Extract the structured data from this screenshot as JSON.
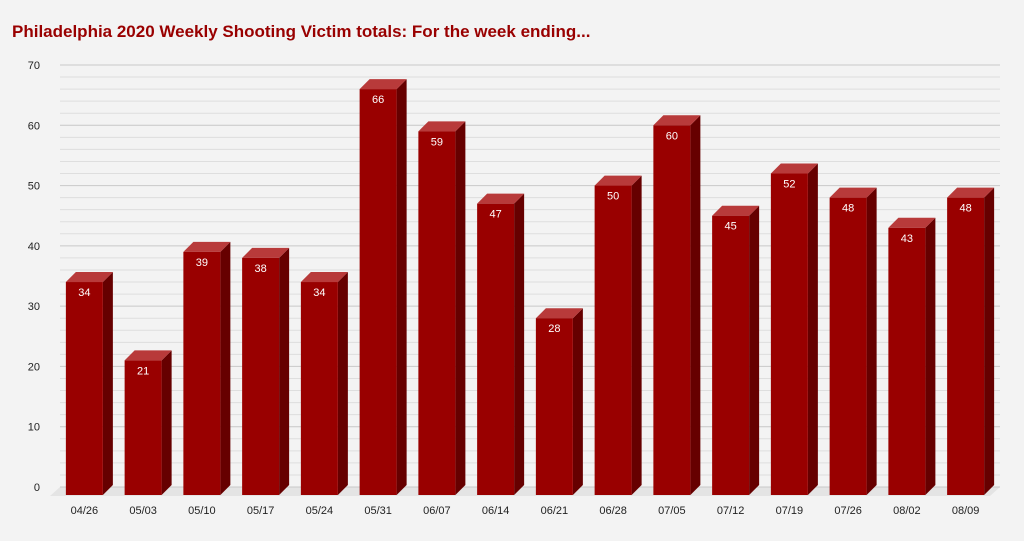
{
  "chart_data": {
    "type": "bar",
    "title": "Philadelphia 2020 Weekly Shooting Victim totals: For the week ending...",
    "xlabel": "",
    "ylabel": "",
    "categories": [
      "04/26",
      "05/03",
      "05/10",
      "05/17",
      "05/24",
      "05/31",
      "06/07",
      "06/14",
      "06/21",
      "06/28",
      "07/05",
      "07/12",
      "07/19",
      "07/26",
      "08/02",
      "08/09"
    ],
    "values": [
      34,
      21,
      39,
      38,
      34,
      66,
      59,
      47,
      28,
      50,
      60,
      45,
      52,
      48,
      43,
      48
    ],
    "ylim": [
      0,
      70
    ],
    "yticks": [
      0,
      10,
      20,
      30,
      40,
      50,
      60,
      70
    ],
    "grid": true,
    "legend": "none",
    "style": "3d",
    "colors": {
      "bar_front": "#990000",
      "bar_side": "#660000",
      "bar_top": "#b83a3a",
      "title": "#990000",
      "label": "#ffffff",
      "grid": "#d4d4d4",
      "background": "#f3f3f3"
    }
  }
}
